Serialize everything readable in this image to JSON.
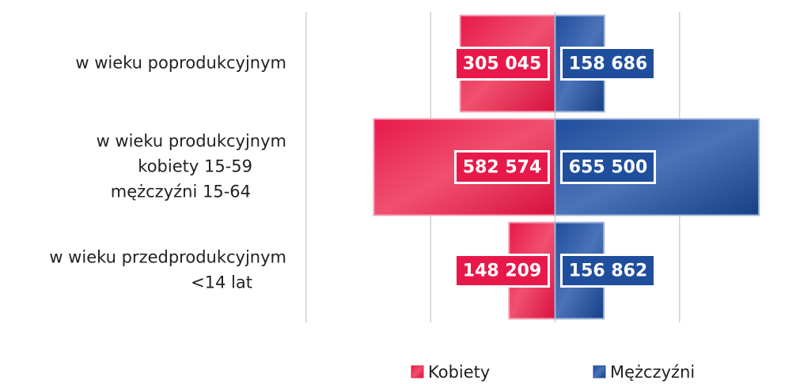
{
  "chart_data": {
    "type": "pyramid",
    "categories": [
      "w wieku poprodukcyjnym",
      "w wieku produkcyjnym\nkobiety 15-59\nmężczyźni 15-64",
      "w wieku przedprodukcyjnym\n<14 lat"
    ],
    "series": [
      {
        "name": "Kobiety",
        "color": "#e8194a",
        "values": [
          305045,
          582574,
          148209
        ],
        "value_labels": [
          "305 045",
          "582 574",
          "148 209"
        ]
      },
      {
        "name": "Mężczyźni",
        "color": "#1f4e9c",
        "values": [
          158686,
          655500,
          156862
        ],
        "value_labels": [
          "158 686",
          "655 500",
          "156 862"
        ]
      }
    ],
    "xlim": [
      -800000,
      720000
    ],
    "xticks": [
      -800000,
      -400000,
      0,
      400000
    ],
    "grid": true
  }
}
